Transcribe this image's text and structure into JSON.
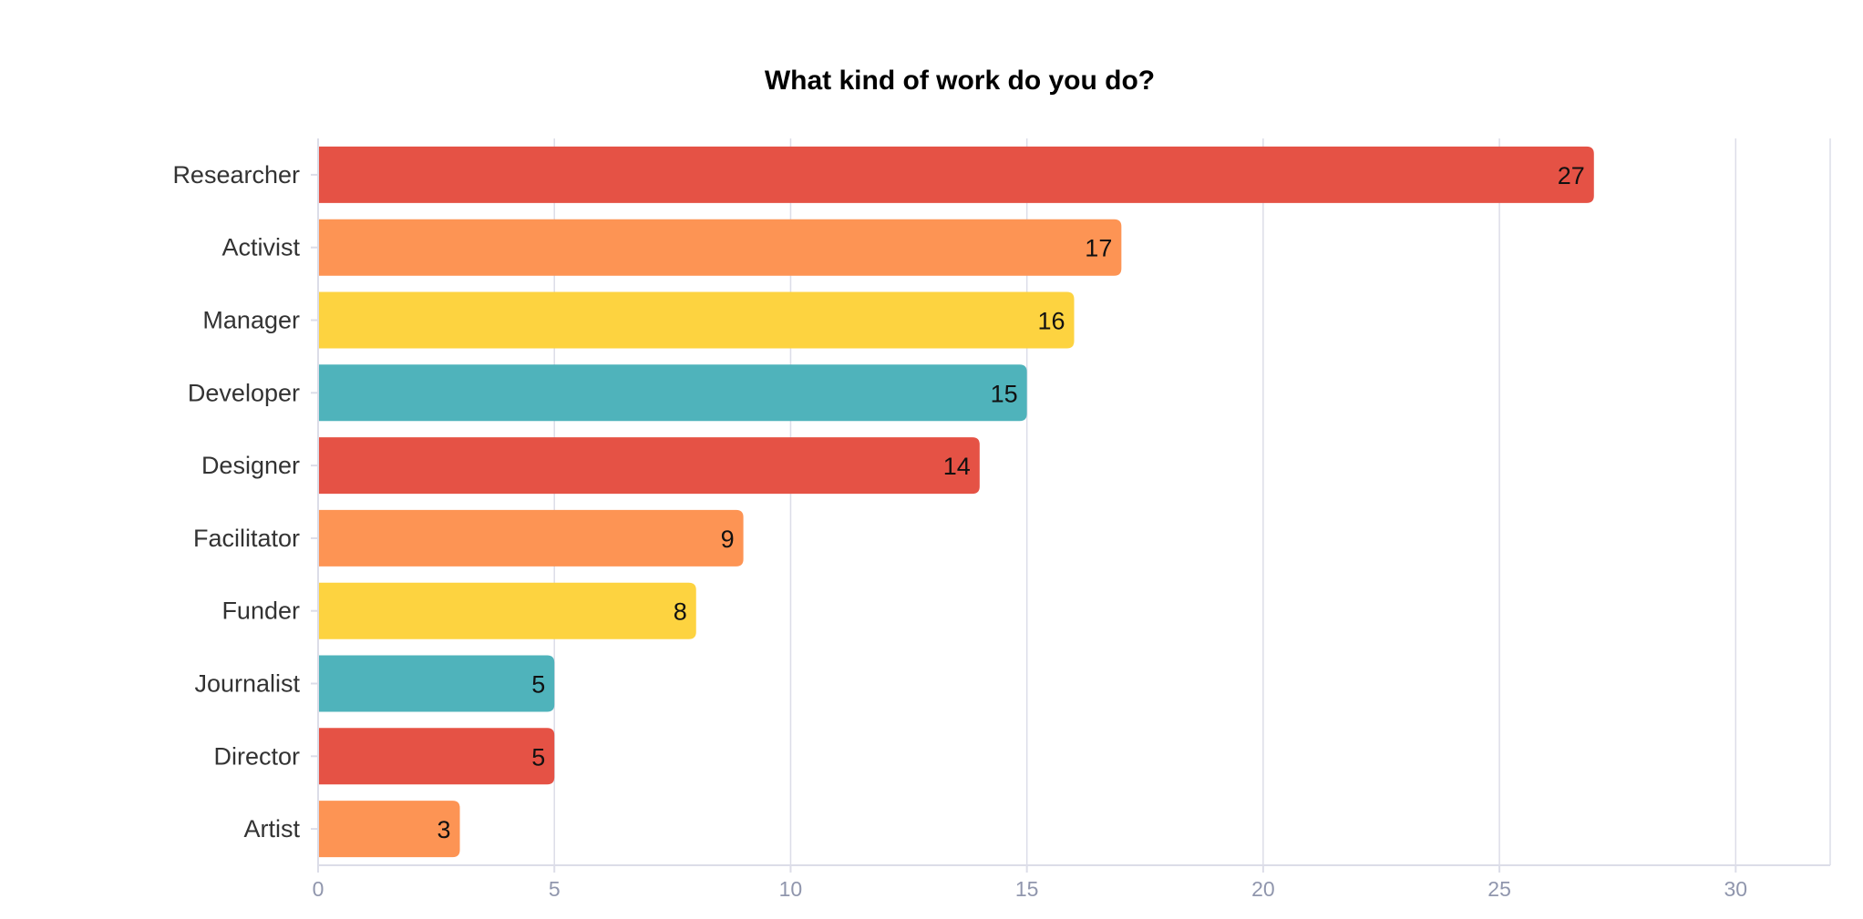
{
  "chart_data": {
    "type": "bar",
    "orientation": "horizontal",
    "title": "What kind of work do you do?",
    "xlabel": "",
    "ylabel": "",
    "categories": [
      "Researcher",
      "Activist",
      "Manager",
      "Developer",
      "Designer",
      "Facilitator",
      "Funder",
      "Journalist",
      "Director",
      "Artist"
    ],
    "values": [
      27,
      17,
      16,
      15,
      14,
      9,
      8,
      5,
      5,
      3
    ],
    "bar_colors": [
      "#e55245",
      "#fd9454",
      "#fdd340",
      "#4fb3bb",
      "#e55245",
      "#fd9454",
      "#fdd340",
      "#4fb3bb",
      "#e55245",
      "#fd9454"
    ],
    "xlim": [
      0,
      32
    ],
    "xticks": [
      0,
      5,
      10,
      15,
      20,
      25,
      30
    ],
    "grid": true,
    "data_labels": true,
    "legend": "none"
  }
}
